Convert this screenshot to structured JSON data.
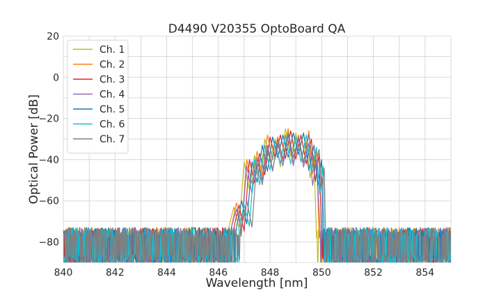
{
  "chart_data": {
    "type": "line",
    "title": "D4490 V20355 OptoBoard QA",
    "xlabel": "Wavelength [nm]",
    "ylabel": "Optical Power [dB]",
    "xlim": [
      840,
      855
    ],
    "ylim": [
      -90,
      20
    ],
    "xticks": [
      840,
      842,
      844,
      846,
      848,
      850,
      852,
      854
    ],
    "yticks": [
      20,
      0,
      -20,
      -40,
      -60,
      -80
    ],
    "xtick_labels": [
      "840",
      "842",
      "844",
      "846",
      "848",
      "850",
      "852",
      "854"
    ],
    "ytick_labels": [
      "20",
      "0",
      "−20",
      "−40",
      "−60",
      "−80"
    ],
    "grid": true,
    "legend_position": "top-left",
    "noise_floor_db": [
      -92,
      -73
    ],
    "series": [
      {
        "name": "Ch. 1",
        "color": "#bcbd22",
        "band_nm": [
          846.4,
          849.8
        ],
        "peaks": [
          [
            846.6,
            -63
          ],
          [
            847.0,
            -41
          ],
          [
            847.4,
            -38
          ],
          [
            847.8,
            -30
          ],
          [
            848.2,
            -30
          ],
          [
            848.6,
            -25
          ],
          [
            849.0,
            -27
          ],
          [
            849.4,
            -31
          ],
          [
            849.7,
            -38
          ]
        ]
      },
      {
        "name": "Ch. 2",
        "color": "#ff7f0e",
        "band_nm": [
          846.5,
          849.9
        ],
        "peaks": [
          [
            846.7,
            -61
          ],
          [
            847.1,
            -40
          ],
          [
            847.5,
            -36
          ],
          [
            847.9,
            -28
          ],
          [
            848.3,
            -29
          ],
          [
            848.7,
            -25
          ],
          [
            849.1,
            -28
          ],
          [
            849.5,
            -26
          ],
          [
            849.8,
            -36
          ]
        ]
      },
      {
        "name": "Ch. 3",
        "color": "#d62728",
        "band_nm": [
          846.6,
          850.0
        ],
        "peaks": [
          [
            846.8,
            -62
          ],
          [
            847.2,
            -40
          ],
          [
            847.6,
            -37
          ],
          [
            848.0,
            -29
          ],
          [
            848.4,
            -28
          ],
          [
            848.8,
            -26
          ],
          [
            849.2,
            -28
          ],
          [
            849.6,
            -30
          ],
          [
            849.9,
            -37
          ]
        ]
      },
      {
        "name": "Ch. 4",
        "color": "#9467bd",
        "band_nm": [
          846.5,
          849.95
        ],
        "peaks": [
          [
            846.7,
            -64
          ],
          [
            847.1,
            -43
          ],
          [
            847.5,
            -39
          ],
          [
            847.9,
            -33
          ],
          [
            848.3,
            -32
          ],
          [
            848.7,
            -28
          ],
          [
            849.1,
            -30
          ],
          [
            849.5,
            -32
          ],
          [
            849.8,
            -40
          ]
        ]
      },
      {
        "name": "Ch. 5",
        "color": "#1f77b4",
        "band_nm": [
          846.7,
          850.05
        ],
        "peaks": [
          [
            846.9,
            -60
          ],
          [
            847.3,
            -41
          ],
          [
            847.7,
            -33
          ],
          [
            848.1,
            -29
          ],
          [
            848.5,
            -28
          ],
          [
            848.9,
            -27
          ],
          [
            849.3,
            -27
          ],
          [
            849.7,
            -33
          ],
          [
            850.0,
            -40
          ]
        ]
      },
      {
        "name": "Ch. 6",
        "color": "#17becf",
        "band_nm": [
          846.8,
          850.1
        ],
        "peaks": [
          [
            847.0,
            -62
          ],
          [
            847.4,
            -40
          ],
          [
            847.8,
            -33
          ],
          [
            848.2,
            -31
          ],
          [
            848.6,
            -28
          ],
          [
            849.0,
            -29
          ],
          [
            849.4,
            -28
          ],
          [
            849.8,
            -34
          ],
          [
            850.05,
            -43
          ]
        ]
      },
      {
        "name": "Ch. 7",
        "color": "#7f7f7f",
        "band_nm": [
          846.9,
          850.15
        ],
        "peaks": [
          [
            847.1,
            -60
          ],
          [
            847.5,
            -39
          ],
          [
            847.9,
            -35
          ],
          [
            848.3,
            -30
          ],
          [
            848.7,
            -27
          ],
          [
            849.1,
            -29
          ],
          [
            849.5,
            -28
          ],
          [
            849.9,
            -35
          ],
          [
            850.1,
            -44
          ]
        ]
      }
    ]
  }
}
